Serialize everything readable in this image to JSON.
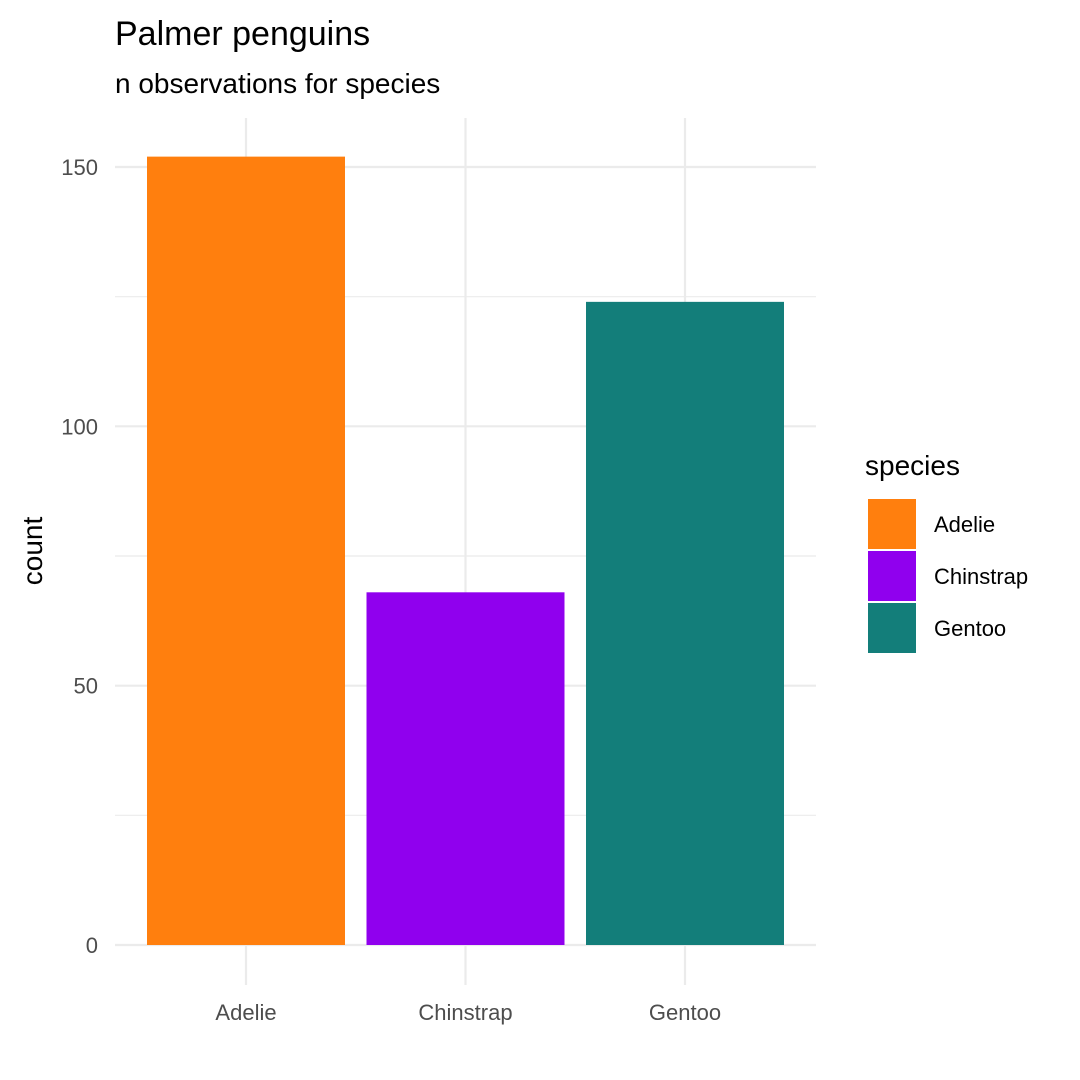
{
  "chart_data": {
    "type": "bar",
    "title": "Palmer penguins",
    "subtitle": "n observations for species",
    "xlabel": "",
    "ylabel": "count",
    "categories": [
      "Adelie",
      "Chinstrap",
      "Gentoo"
    ],
    "values": [
      152,
      68,
      124
    ],
    "colors": [
      "#FF7F0E",
      "#9000EE",
      "#137E7A"
    ],
    "ylim": [
      0,
      160
    ],
    "yticks": [
      0,
      50,
      100,
      150
    ],
    "yticks_minor": [
      25,
      75,
      125
    ],
    "grid": true,
    "legend": {
      "title": "species",
      "placement": "right",
      "entries": [
        "Adelie",
        "Chinstrap",
        "Gentoo"
      ]
    }
  }
}
